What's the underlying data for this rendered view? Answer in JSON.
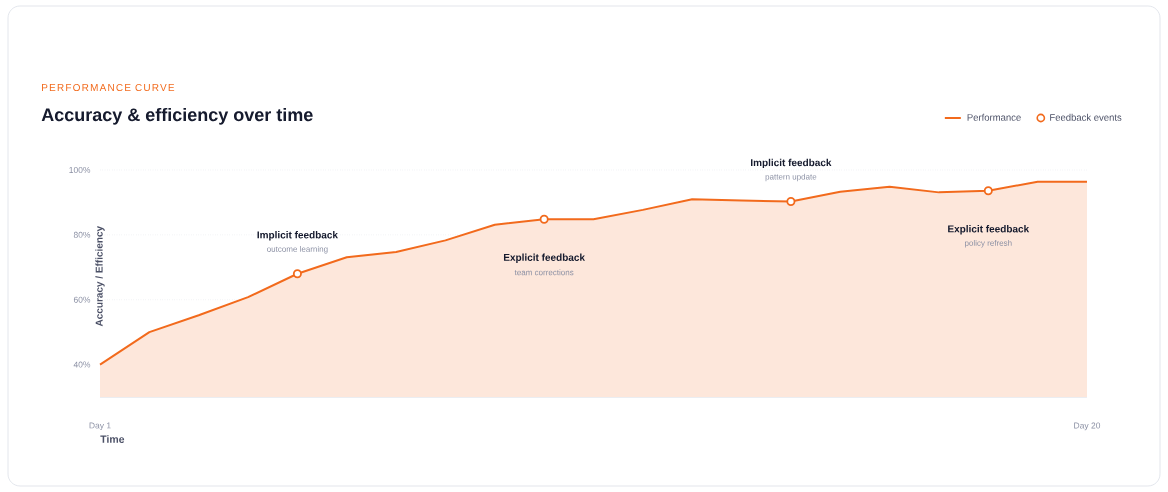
{
  "chart_data": {
    "type": "area",
    "subtitle": "PERFORMANCE CURVE",
    "title": "Accuracy & efficiency over time",
    "xlabel": "Time",
    "ylabel": "Accuracy / Efficiency",
    "categories": [
      "Day 1",
      null,
      null,
      null,
      null,
      null,
      null,
      null,
      null,
      null,
      null,
      null,
      null,
      null,
      null,
      null,
      null,
      null,
      null,
      null,
      "Day 20"
    ],
    "series": [
      {
        "name": "Performance",
        "color": "#f26a1c",
        "values": [
          40,
          50,
          55.2,
          60.8,
          68,
          73.1,
          74.7,
          78.3,
          83.1,
          84.8,
          84.8,
          87.7,
          91,
          90.6,
          90.3,
          93.3,
          94.8,
          93.1,
          93.6,
          96.4,
          96.4
        ]
      },
      {
        "name": "Feedback events",
        "type": "scatter",
        "marker": "circle",
        "color": "#f26a1c",
        "values": [
          null,
          null,
          null,
          null,
          68,
          null,
          null,
          null,
          null,
          84.8,
          null,
          null,
          null,
          null,
          90.3,
          null,
          null,
          null,
          93.6,
          null,
          null
        ]
      }
    ],
    "annotations": [
      "Implicit feedback",
      "outcome learning",
      "Explicit feedback",
      "team corrections",
      "Implicit feedback",
      "pattern update",
      "Explicit feedback",
      "policy refresh"
    ],
    "ylim": [
      30,
      100
    ],
    "yticks": [
      {
        "value": 40,
        "label": "40%"
      },
      {
        "value": 60,
        "label": "60%"
      },
      {
        "value": 80,
        "label": "80%"
      },
      {
        "value": 100,
        "label": "100%"
      }
    ],
    "grid": "y",
    "legend": "top right"
  }
}
